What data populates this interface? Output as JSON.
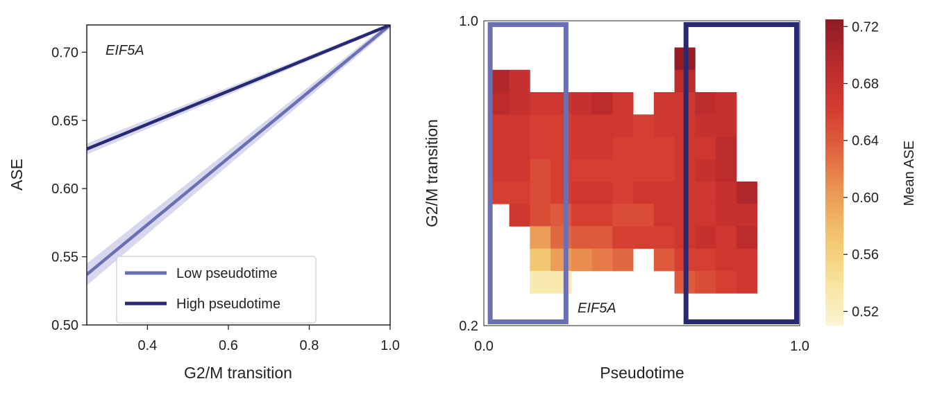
{
  "colors": {
    "low": "#6b6fb3",
    "high": "#272a72",
    "band": "#c9cbe8",
    "scale": [
      "#fbf5d6",
      "#f7e39a",
      "#f3c66e",
      "#eb9a55",
      "#e0643f",
      "#d33a30",
      "#b82a2d",
      "#8e1b26"
    ]
  },
  "chart_data": [
    {
      "type": "line",
      "annotation": "EIF5A",
      "xlabel": "G2/M transition",
      "ylabel": "ASE",
      "xlim": [
        0.25,
        1.0
      ],
      "ylim": [
        0.5,
        0.72
      ],
      "xticks": [
        "0.4",
        "0.6",
        "0.8",
        "1.0"
      ],
      "yticks": [
        "0.50",
        "0.55",
        "0.60",
        "0.65",
        "0.70"
      ],
      "grid": false,
      "legend_position": "lower-right",
      "series": [
        {
          "name": "Low pseudotime",
          "color_key": "low",
          "x": [
            0.25,
            1.0
          ],
          "y": [
            0.537,
            0.72
          ],
          "band": 0.008
        },
        {
          "name": "High pseudotime",
          "color_key": "high",
          "x": [
            0.25,
            1.0
          ],
          "y": [
            0.629,
            0.72
          ],
          "band": 0.004
        }
      ]
    },
    {
      "type": "heatmap",
      "annotation": "EIF5A",
      "xlabel": "Pseudotime",
      "ylabel": "G2/M transition",
      "xlim": [
        0.0,
        1.0
      ],
      "ylim": [
        0.2,
        1.0
      ],
      "xticks": [
        "0.0",
        "1.0"
      ],
      "yticks": [
        "1.0",
        "0.2"
      ],
      "colorbar": {
        "label": "Mean ASE",
        "range": [
          0.51,
          0.725
        ],
        "ticks": [
          "0.72",
          "0.68",
          "0.64",
          "0.60",
          "0.56",
          "0.52"
        ]
      },
      "x_bins": 13,
      "y_bins": 11,
      "cells": [
        [
          null,
          null,
          null,
          null,
          null,
          null,
          null,
          null,
          null,
          0.72,
          null,
          null,
          null
        ],
        [
          0.7,
          0.68,
          null,
          null,
          null,
          null,
          null,
          null,
          null,
          0.69,
          null,
          null,
          null
        ],
        [
          0.69,
          0.68,
          0.67,
          0.67,
          0.68,
          0.69,
          0.67,
          null,
          0.67,
          0.67,
          0.69,
          0.68,
          null
        ],
        [
          0.67,
          0.67,
          0.66,
          0.66,
          0.67,
          0.67,
          0.67,
          0.66,
          0.67,
          0.67,
          0.68,
          0.68,
          null
        ],
        [
          0.67,
          0.67,
          0.66,
          0.66,
          0.67,
          0.67,
          0.66,
          0.66,
          0.66,
          0.67,
          0.67,
          0.69,
          null
        ],
        [
          0.67,
          0.67,
          0.65,
          0.66,
          0.66,
          0.66,
          0.66,
          0.66,
          0.66,
          0.67,
          0.68,
          0.69,
          null
        ],
        [
          0.66,
          0.66,
          0.65,
          0.66,
          0.67,
          0.67,
          0.66,
          0.67,
          0.67,
          0.67,
          0.67,
          0.68,
          0.7
        ],
        [
          null,
          0.67,
          0.65,
          0.64,
          0.66,
          0.66,
          0.65,
          0.65,
          0.67,
          0.67,
          0.67,
          0.68,
          0.68
        ],
        [
          null,
          null,
          0.6,
          0.63,
          0.64,
          0.64,
          0.66,
          0.66,
          0.66,
          0.67,
          0.68,
          0.67,
          0.69
        ],
        [
          null,
          null,
          0.57,
          0.6,
          0.61,
          0.62,
          0.63,
          null,
          0.64,
          0.66,
          0.66,
          0.67,
          0.67
        ],
        [
          null,
          null,
          0.53,
          0.53,
          null,
          null,
          null,
          null,
          null,
          0.64,
          0.65,
          0.66,
          0.67
        ]
      ],
      "highlight_boxes": [
        {
          "color_key": "low",
          "x_range": [
            0.02,
            0.26
          ],
          "y_range": [
            0.21,
            0.99
          ]
        },
        {
          "color_key": "high",
          "x_range": [
            0.64,
            0.99
          ],
          "y_range": [
            0.21,
            0.99
          ]
        }
      ]
    }
  ]
}
